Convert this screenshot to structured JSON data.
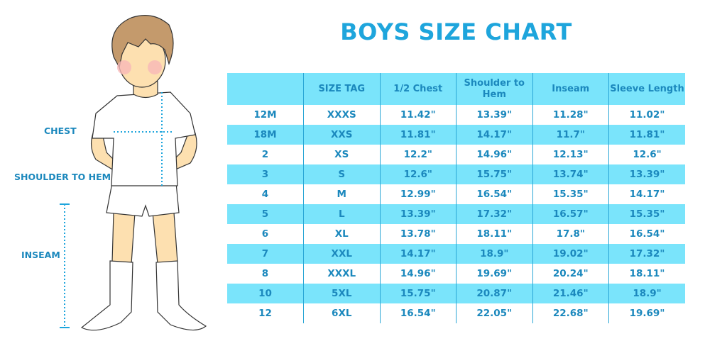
{
  "title": "BOYS SIZE CHART",
  "measure_labels": {
    "chest": "CHEST",
    "shoulder_to_hem": "SHOULDER TO HEM",
    "inseam": "INSEAM"
  },
  "table": {
    "headers": [
      "",
      "SIZE TAG",
      "1/2 Chest",
      "Shoulder to Hem",
      "Inseam",
      "Sleeve Length"
    ],
    "rows": [
      [
        "12M",
        "XXXS",
        "11.42\"",
        "13.39\"",
        "11.28\"",
        "11.02\""
      ],
      [
        "18M",
        "XXS",
        "11.81\"",
        "14.17\"",
        "11.7\"",
        "11.81\""
      ],
      [
        "2",
        "XS",
        "12.2\"",
        "14.96\"",
        "12.13\"",
        "12.6\""
      ],
      [
        "3",
        "S",
        "12.6\"",
        "15.75\"",
        "13.74\"",
        "13.39\""
      ],
      [
        "4",
        "M",
        "12.99\"",
        "16.54\"",
        "15.35\"",
        "14.17\""
      ],
      [
        "5",
        "L",
        "13.39\"",
        "17.32\"",
        "16.57\"",
        "15.35\""
      ],
      [
        "6",
        "XL",
        "13.78\"",
        "18.11\"",
        "17.8\"",
        "16.54\""
      ],
      [
        "7",
        "XXL",
        "14.17\"",
        "18.9\"",
        "19.02\"",
        "17.32\""
      ],
      [
        "8",
        "XXXL",
        "14.96\"",
        "19.69\"",
        "20.24\"",
        "18.11\""
      ],
      [
        "10",
        "5XL",
        "15.75\"",
        "20.87\"",
        "21.46\"",
        "18.9\""
      ],
      [
        "12",
        "6XL",
        "16.54\"",
        "22.05\"",
        "22.68\"",
        "19.69\""
      ]
    ]
  },
  "colors": {
    "accent": "#1ea5dc",
    "stripe": "#7ae4fb",
    "text": "#1b88bd"
  }
}
